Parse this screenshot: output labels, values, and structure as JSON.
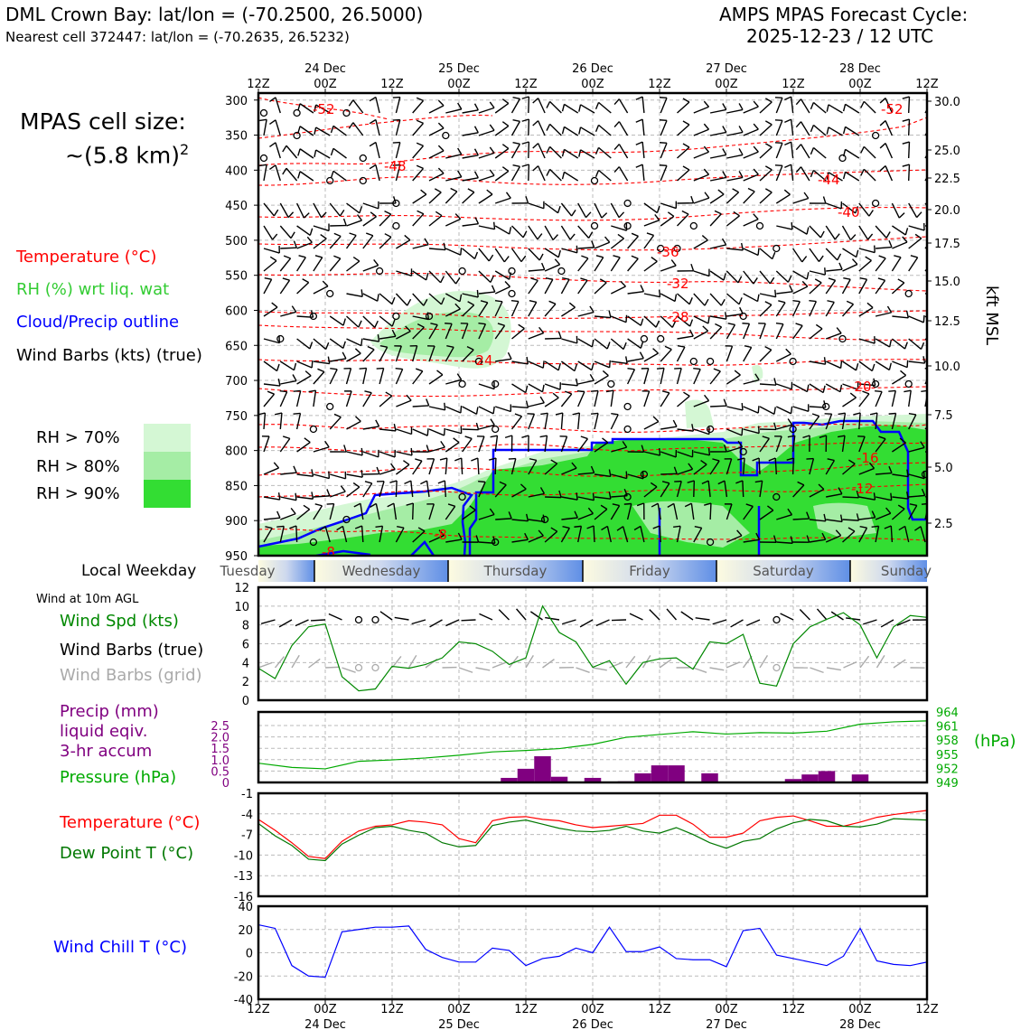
{
  "header": {
    "station": "DML Crown Bay: lat/lon = (-70.2500, 26.5000)",
    "nearest": "Nearest cell 372447: lat/lon = (-70.2635, 26.5232)",
    "cycle_line1": "AMPS MPAS Forecast Cycle:",
    "cycle_line2": "2025-12-23 / 12 UTC"
  },
  "legend": {
    "cell_size_line1": "MPAS cell size:",
    "cell_size_line2": "~(5.8 km)",
    "cell_size_exp": "2",
    "temperature": "Temperature (°C)",
    "rh": "RH (%) wrt liq. wat",
    "cloud": "Cloud/Precip outline",
    "barbs": "Wind Barbs (kts) (true)",
    "rh70": "RH > 70%",
    "rh80": "RH > 80%",
    "rh90": "RH > 90%",
    "local_weekday": "Local Weekday",
    "wind_10m": "Wind at 10m AGL",
    "wind_spd": "Wind Spd (kts)",
    "wind_barbs_true": "Wind Barbs (true)",
    "wind_barbs_grid": "Wind Barbs (grid)",
    "precip_l1": "Precip (mm)",
    "precip_l2": "liquid eqiv.",
    "precip_l3": "3-hr accum",
    "pressure": "Pressure (hPa)",
    "pressure_unit": "(hPa)",
    "temp2": "Temperature (°C)",
    "dew": "Dew Point T (°C)",
    "wind_chill": "Wind Chill T (°C)",
    "kft_label": "kft MSL"
  },
  "colors": {
    "temp": "#ff0000",
    "rh_text": "#33cc33",
    "cloud": "#0000ff",
    "precip": "#800080",
    "pressure": "#00aa00",
    "dew": "#007700",
    "grid_barbs": "#aaaaaa",
    "rh70": "#d4f7d4",
    "rh80": "#a5eda5",
    "rh90": "#33dd33"
  },
  "time_axis": {
    "ticks": [
      "12Z",
      "00Z",
      "12Z",
      "00Z",
      "12Z",
      "00Z",
      "12Z",
      "00Z",
      "12Z",
      "00Z",
      "12Z"
    ],
    "dates": [
      "24 Dec",
      "25 Dec",
      "26 Dec",
      "27 Dec",
      "28 Dec"
    ]
  },
  "weekdays": [
    "Tuesday",
    "Wednesday",
    "Thursday",
    "Friday",
    "Saturday",
    "Sunday"
  ],
  "chart_data": [
    {
      "type": "contour",
      "name": "upper-air time-height cross section",
      "y_pressure_ticks": [
        300,
        350,
        400,
        450,
        500,
        550,
        600,
        650,
        700,
        750,
        800,
        850,
        900,
        950
      ],
      "y_kft_ticks": [
        "30.0",
        "25.0",
        "22.5",
        "20.0",
        "17.5",
        "15.0",
        "12.5",
        "10.0",
        "7.5",
        "5.0",
        "2.5"
      ],
      "temperature_contour_labels": [
        "-52",
        "-48",
        "-52",
        "-44",
        "-40",
        "-36",
        "-32",
        "-28",
        "-24",
        "-20",
        "-16",
        "-12",
        "-8",
        "-8"
      ],
      "x_hours": [
        0,
        120
      ],
      "ylim_hpa": [
        950,
        290
      ]
    },
    {
      "type": "line",
      "name": "Wind speed at 10 m",
      "ylabel": "kts",
      "yticks": [
        "0",
        "2",
        "4",
        "6",
        "8",
        "10",
        "12"
      ],
      "ylim": [
        0,
        12
      ],
      "x_hours": [
        0,
        3,
        6,
        9,
        12,
        15,
        18,
        21,
        24,
        27,
        30,
        33,
        36,
        39,
        42,
        45,
        48,
        51,
        54,
        57,
        60,
        63,
        66,
        69,
        72,
        75,
        78,
        81,
        84,
        87,
        90,
        93,
        96,
        99,
        102,
        105,
        108,
        111,
        114,
        117,
        120
      ],
      "values": [
        3.4,
        2.3,
        5.8,
        7.8,
        8.1,
        2.5,
        1.0,
        1.2,
        3.6,
        3.4,
        3.8,
        4.5,
        6.2,
        6.0,
        5.2,
        3.8,
        4.5,
        10.0,
        7.2,
        6.2,
        3.5,
        4.2,
        1.7,
        4.0,
        4.4,
        4.5,
        3.3,
        6.2,
        6.0,
        7.0,
        1.8,
        1.5,
        6.0,
        7.8,
        8.6,
        9.3,
        8.0,
        4.5,
        7.8,
        9.0,
        8.8
      ]
    },
    {
      "type": "bar+line",
      "name": "Precipitation and surface pressure",
      "precip_yticks": [
        "0",
        "0.5",
        "1.0",
        "1.5",
        "2.0",
        "2.5"
      ],
      "precip_ylim": [
        0,
        2.5
      ],
      "precip_x_hours": [
        45,
        48,
        51,
        54,
        57,
        60,
        63,
        66,
        69,
        72,
        75,
        78,
        81,
        84,
        87,
        90,
        93,
        96,
        99,
        102,
        105,
        108,
        111
      ],
      "precip_mm": [
        0.2,
        0.6,
        1.15,
        0.25,
        0.0,
        0.2,
        0.0,
        0.05,
        0.4,
        0.75,
        0.75,
        0.0,
        0.4,
        0.0,
        0.0,
        0.0,
        0.0,
        0.15,
        0.35,
        0.5,
        0.0,
        0.35,
        0.0
      ],
      "pressure_yticks": [
        "949",
        "952",
        "955",
        "958",
        "961",
        "964"
      ],
      "pressure_ylim": [
        949,
        964
      ],
      "pressure_x_hours": [
        0,
        6,
        12,
        18,
        24,
        30,
        36,
        42,
        48,
        54,
        60,
        66,
        72,
        78,
        84,
        90,
        96,
        102,
        108,
        114,
        120
      ],
      "pressure_hpa": [
        953.1,
        952.2,
        951.9,
        953.5,
        953.8,
        954.2,
        954.8,
        955.5,
        955.8,
        956.2,
        957.1,
        958.6,
        959.2,
        959.8,
        959.3,
        959.6,
        959.5,
        959.9,
        961.4,
        961.9,
        962.1
      ]
    },
    {
      "type": "line",
      "name": "Temperature and dew point",
      "ylabel": "°C",
      "yticks": [
        "-1",
        "-4",
        "-7",
        "-10",
        "-13",
        "-16"
      ],
      "ylim": [
        -16,
        -1
      ],
      "x_hours": [
        0,
        3,
        6,
        9,
        12,
        15,
        18,
        21,
        24,
        27,
        30,
        33,
        36,
        39,
        42,
        45,
        48,
        51,
        54,
        57,
        60,
        63,
        66,
        69,
        72,
        75,
        78,
        81,
        84,
        87,
        90,
        93,
        96,
        99,
        102,
        105,
        108,
        111,
        114,
        117,
        120
      ],
      "series": [
        {
          "name": "Temperature",
          "values": [
            -4.8,
            -6.4,
            -8.2,
            -10.2,
            -10.5,
            -8.0,
            -6.5,
            -5.8,
            -5.6,
            -5.0,
            -5.2,
            -5.6,
            -7.6,
            -8.2,
            -5.0,
            -4.5,
            -4.4,
            -4.8,
            -5.0,
            -5.6,
            -6.0,
            -5.8,
            -5.6,
            -5.4,
            -4.2,
            -4.2,
            -5.5,
            -7.4,
            -7.4,
            -6.8,
            -5.0,
            -4.5,
            -4.3,
            -5.0,
            -5.8,
            -5.8,
            -5.2,
            -4.5,
            -4.1,
            -3.8,
            -3.5
          ]
        },
        {
          "name": "Dew Point",
          "values": [
            -5.4,
            -7.2,
            -8.6,
            -10.6,
            -10.8,
            -8.4,
            -7.1,
            -6.0,
            -5.8,
            -6.4,
            -6.8,
            -8.2,
            -8.8,
            -8.6,
            -5.7,
            -5.2,
            -4.9,
            -5.5,
            -6.1,
            -6.5,
            -6.6,
            -6.4,
            -5.8,
            -6.5,
            -6.8,
            -6.0,
            -7.0,
            -8.2,
            -9.0,
            -8.0,
            -7.6,
            -6.2,
            -5.3,
            -4.8,
            -5.0,
            -5.8,
            -5.9,
            -5.5,
            -4.7,
            -4.8,
            -4.9
          ]
        }
      ]
    },
    {
      "type": "line",
      "name": "Wind chill temperature",
      "ylabel": "°C",
      "yticks": [
        "40",
        "20",
        "0",
        "-20",
        "-40"
      ],
      "ylim": [
        -40,
        40
      ],
      "x_hours": [
        0,
        3,
        6,
        9,
        12,
        15,
        18,
        21,
        24,
        27,
        30,
        33,
        36,
        39,
        42,
        45,
        48,
        51,
        54,
        57,
        60,
        63,
        66,
        69,
        72,
        75,
        78,
        81,
        84,
        87,
        90,
        93,
        96,
        99,
        102,
        105,
        108,
        111,
        114,
        117,
        120
      ],
      "values": [
        24,
        21,
        -11,
        -20,
        -21,
        18,
        20,
        22,
        22,
        23,
        3,
        -4,
        -8,
        -8,
        4,
        2,
        -11,
        -5,
        -3,
        4,
        0,
        22,
        1,
        1,
        5,
        -5,
        -6,
        -6,
        -12,
        19,
        21,
        -2,
        -5,
        -8,
        -11,
        -3,
        21,
        -7,
        -10,
        -11,
        -8
      ]
    }
  ]
}
